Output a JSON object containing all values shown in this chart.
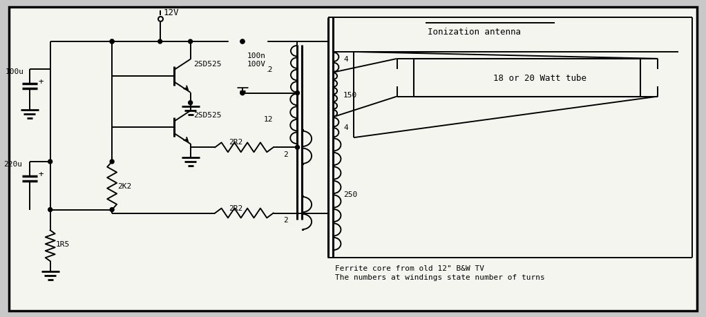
{
  "bg_color": "#f5f5f0",
  "line_color": "#000000",
  "fig_bg": "#c8c8c8",
  "labels": {
    "v12": "12V",
    "cap1": "100u",
    "cap2": "220u",
    "r1": "2K2",
    "r2": "1R5",
    "r3": "2R2",
    "r4": "2R2",
    "trans1": "2SD525",
    "trans2": "2SD525",
    "cap3_a": "100n",
    "cap3_b": "100V",
    "w12_1": "12",
    "w12_2": "12",
    "w2_1": "2",
    "w2_2": "2",
    "w4_1": "4",
    "w150": "150",
    "w4_2": "4",
    "w250": "250",
    "tube_label": "18 or 20 Watt tube",
    "antenna_label": "Ionization antenna",
    "note1": "Ferrite core from old 12\" B&W TV",
    "note2": "The numbers at windings state number of turns"
  }
}
